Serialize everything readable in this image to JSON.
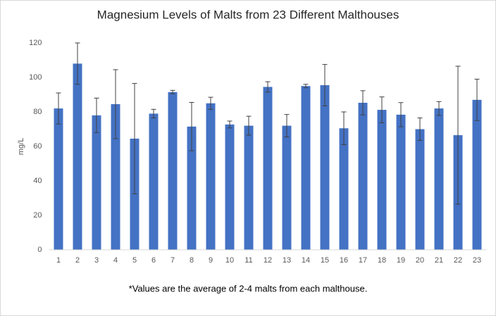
{
  "chart_data": {
    "type": "bar",
    "title": "Magnesium Levels of Malts from 23 Different Malthouses",
    "y_label": "mg/L",
    "note": "*Values are the average of 2-4 malts from each malthouse.",
    "categories": [
      "1",
      "2",
      "3",
      "4",
      "5",
      "6",
      "7",
      "8",
      "9",
      "10",
      "11",
      "12",
      "13",
      "14",
      "15",
      "16",
      "17",
      "18",
      "19",
      "20",
      "21",
      "22",
      "23"
    ],
    "values": [
      82,
      108,
      78,
      84.5,
      64.5,
      79,
      91.5,
      71.5,
      85,
      72.7,
      72,
      94.5,
      72,
      95,
      95.5,
      70.5,
      85.3,
      81.2,
      78.4,
      70,
      82,
      66.5,
      87
    ],
    "errors": [
      9,
      12,
      10,
      20,
      32,
      2.5,
      1,
      14,
      3.5,
      2,
      5.5,
      3,
      6.5,
      1,
      12,
      9.5,
      7,
      7.5,
      7,
      6.5,
      4,
      40,
      12
    ],
    "color": "#4472c4",
    "ylim": [
      0,
      120
    ],
    "yticks": [
      0,
      20,
      40,
      60,
      80,
      100,
      120
    ],
    "grid": false
  }
}
